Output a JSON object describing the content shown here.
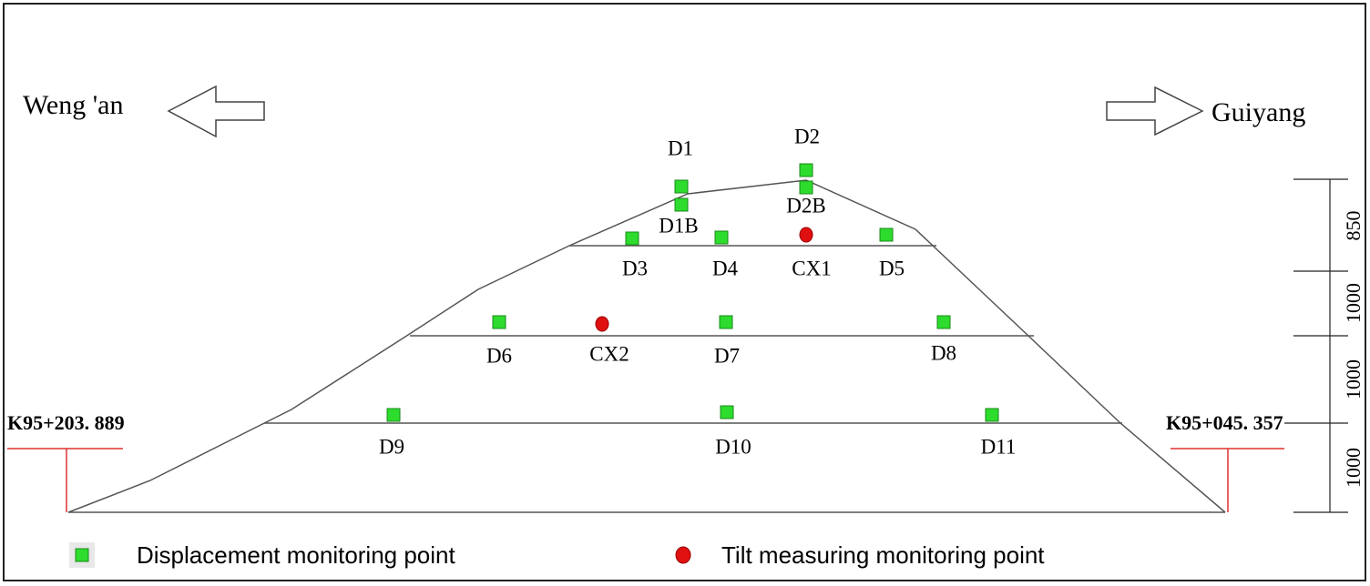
{
  "directions": {
    "left": "Weng 'an",
    "right": "Guiyang"
  },
  "chainages": {
    "left": "K95+203. 889",
    "right": "K95+045. 357"
  },
  "points": [
    "D1",
    "D1B",
    "D2",
    "D2B",
    "D3",
    "D4",
    "CX1",
    "D5",
    "D6",
    "CX2",
    "D7",
    "D8",
    "D9",
    "D10",
    "D11"
  ],
  "dimensions": [
    850,
    1000,
    1000,
    1000
  ],
  "legend": [
    "Displacement monitoring point",
    "Tilt measuring monitoring point"
  ]
}
